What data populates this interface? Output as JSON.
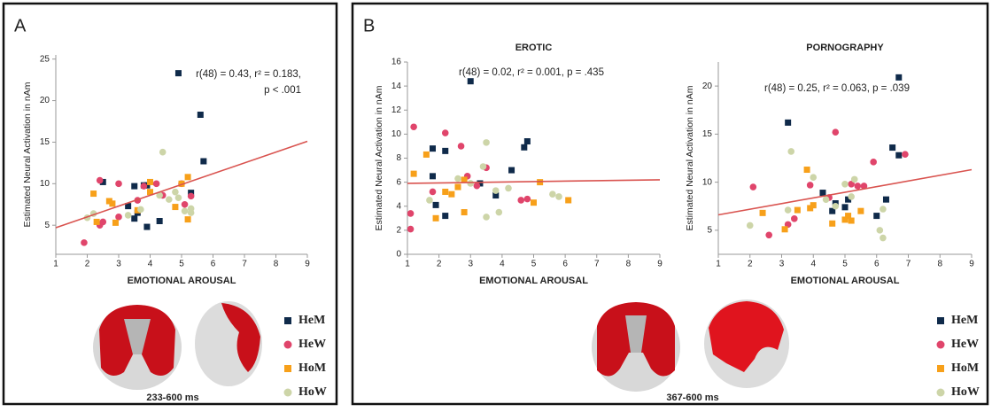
{
  "panels": [
    {
      "label": "A",
      "time_window": "233-600 ms"
    },
    {
      "label": "B",
      "time_window": "367-600 ms"
    }
  ],
  "chart_data": [
    {
      "type": "scatter",
      "xlabel": "EMOTIONAL AROUSAL",
      "ylabel": "Estimated Neural Activation in nAm",
      "annotation": [
        "r(48) = 0.43, r² = 0.183,",
        "p < .001"
      ],
      "xlim": [
        1,
        9
      ],
      "xticks": [
        1,
        2,
        3,
        4,
        5,
        6,
        7,
        8,
        9
      ],
      "ylim": [
        1.5,
        25.5
      ],
      "yticks": [
        5,
        10,
        15,
        20,
        25
      ],
      "series": [
        {
          "name": "HeM",
          "color": "#0f2a4a",
          "marker": "square",
          "x": [
            2.5,
            3.3,
            3.5,
            3.5,
            3.6,
            3.9,
            3.9,
            4.3,
            4.9,
            5.3,
            5.6,
            5.7,
            3.8
          ],
          "values": [
            10.2,
            7.3,
            9.7,
            5.8,
            6.5,
            9.8,
            4.8,
            5.5,
            23.3,
            8.9,
            18.3,
            12.7,
            9.8
          ]
        },
        {
          "name": "HeW",
          "color": "#e0456b",
          "marker": "circle",
          "x": [
            1.9,
            2.4,
            2.4,
            2.5,
            3,
            3,
            3.6,
            3.8,
            4.2,
            4.4,
            5,
            5.1,
            5.3
          ],
          "values": [
            2.9,
            5,
            10.4,
            5.4,
            6,
            10,
            8,
            9.7,
            10,
            8.6,
            10,
            7.5,
            8.5
          ]
        },
        {
          "name": "HoM",
          "color": "#f7a01a",
          "marker": "square",
          "x": [
            2.2,
            2.3,
            2.7,
            2.8,
            2.9,
            3.6,
            4,
            4,
            4.8,
            5.2,
            5.2,
            5
          ],
          "values": [
            8.8,
            5.4,
            7.9,
            7.6,
            5.3,
            6.8,
            10.2,
            9,
            7.2,
            10.8,
            5.7,
            10
          ]
        },
        {
          "name": "HoW",
          "color": "#cdd5a8",
          "marker": "circle",
          "x": [
            2,
            2.2,
            3.3,
            3.7,
            4.4,
            4.3,
            4.6,
            4.9,
            5.1,
            5.3,
            5.3,
            4.8
          ],
          "values": [
            5.9,
            6.4,
            6.2,
            6.9,
            13.8,
            8.6,
            8.1,
            8.3,
            6.7,
            6.5,
            7,
            9
          ]
        }
      ],
      "fit": {
        "color": "#d9534f",
        "x": [
          1,
          9
        ],
        "values": [
          4.7,
          15.1
        ]
      }
    },
    {
      "type": "scatter",
      "title": "EROTIC",
      "xlabel": "EMOTIONAL AROUSAL",
      "ylabel": "Estimated Neural Activation in nAm",
      "annotation": [
        "r(48) = 0.02, r² = 0.001, p = .435"
      ],
      "xlim": [
        1,
        9
      ],
      "xticks": [
        1,
        2,
        3,
        4,
        5,
        6,
        7,
        8,
        9
      ],
      "ylim": [
        0,
        16
      ],
      "yticks": [
        0,
        2,
        4,
        6,
        8,
        10,
        12,
        14,
        16
      ],
      "series": [
        {
          "name": "HeM",
          "color": "#0f2a4a",
          "marker": "square",
          "x": [
            1.8,
            1.8,
            1.9,
            2.2,
            2.2,
            3,
            3.3,
            3.8,
            4.3,
            4.7,
            4.8
          ],
          "values": [
            8.8,
            6.5,
            4.1,
            8.6,
            3.2,
            14.4,
            5.9,
            4.9,
            7,
            8.9,
            9.4
          ]
        },
        {
          "name": "HeW",
          "color": "#e0456b",
          "marker": "circle",
          "x": [
            1.1,
            1.1,
            1.2,
            1.8,
            2.2,
            2.7,
            2.9,
            3.5,
            4.6,
            4.8,
            3.2
          ],
          "values": [
            3.4,
            2.1,
            10.6,
            5.2,
            10.1,
            9,
            6.5,
            7.2,
            4.5,
            4.6,
            5.7
          ]
        },
        {
          "name": "HoM",
          "color": "#f7a01a",
          "marker": "square",
          "x": [
            1.2,
            1.6,
            1.9,
            2.2,
            2.4,
            2.6,
            2.8,
            2.8,
            5,
            5.2,
            6.1
          ],
          "values": [
            6.7,
            8.3,
            3,
            5.2,
            5,
            5.6,
            3.5,
            6.2,
            4.3,
            6,
            4.5
          ]
        },
        {
          "name": "HoW",
          "color": "#cdd5a8",
          "marker": "circle",
          "x": [
            1.7,
            2.6,
            3.4,
            3.5,
            3.5,
            3.8,
            3.9,
            4.2,
            5.6,
            5.8,
            3
          ],
          "values": [
            4.5,
            6.3,
            7.3,
            9.3,
            3.1,
            5.3,
            3.5,
            5.5,
            5,
            4.8,
            5.9
          ]
        }
      ],
      "fit": {
        "color": "#d9534f",
        "x": [
          1,
          9
        ],
        "values": [
          5.9,
          6.2
        ]
      }
    },
    {
      "type": "scatter",
      "title": "PORNOGRAPHY",
      "xlabel": "EMOTIONAL AROUSAL",
      "ylabel": "Estimated Neural Activation in nAm",
      "annotation": [
        "r(48) = 0.25, r² = 0.063, p = .039"
      ],
      "xlim": [
        1,
        9
      ],
      "xticks": [
        1,
        2,
        3,
        4,
        5,
        6,
        7,
        8,
        9
      ],
      "ylim": [
        2.5,
        22.5
      ],
      "yticks": [
        5,
        10,
        15,
        20
      ],
      "series": [
        {
          "name": "HeM",
          "color": "#0f2a4a",
          "marker": "square",
          "x": [
            3.2,
            4.3,
            4.6,
            5,
            5.1,
            6,
            6.3,
            6.5,
            6.7,
            6.7,
            4.7
          ],
          "values": [
            16.2,
            8.9,
            7,
            7.4,
            8.2,
            6.5,
            8.2,
            13.6,
            20.9,
            12.8,
            7.8
          ]
        },
        {
          "name": "HeW",
          "color": "#e0456b",
          "marker": "circle",
          "x": [
            2.1,
            2.6,
            3.2,
            3.4,
            3.9,
            4.5,
            4.7,
            5.2,
            5.4,
            5.6,
            5.9,
            6.9
          ],
          "values": [
            9.5,
            4.5,
            5.6,
            6.2,
            9.7,
            8.4,
            15.2,
            9.8,
            9.6,
            9.6,
            12.1,
            12.9
          ]
        },
        {
          "name": "HoM",
          "color": "#f7a01a",
          "marker": "square",
          "x": [
            2.4,
            3.1,
            3.5,
            3.8,
            3.9,
            4,
            4.6,
            5,
            5.1,
            5.2,
            5.5
          ],
          "values": [
            6.8,
            5.1,
            7.1,
            11.3,
            7.3,
            7.6,
            5.7,
            6.1,
            6.5,
            6,
            7
          ]
        },
        {
          "name": "HoW",
          "color": "#cdd5a8",
          "marker": "circle",
          "x": [
            2,
            3.2,
            3.3,
            4,
            4.4,
            4.7,
            5,
            5.3,
            5.2,
            6.1,
            6.2,
            6.2
          ],
          "values": [
            5.5,
            7.1,
            13.2,
            10.5,
            8.2,
            7.5,
            9.8,
            10.3,
            8.5,
            5,
            4.2,
            7.2
          ]
        }
      ],
      "fit": {
        "color": "#d9534f",
        "x": [
          1,
          9
        ],
        "values": [
          6.6,
          11.3
        ]
      }
    }
  ]
}
